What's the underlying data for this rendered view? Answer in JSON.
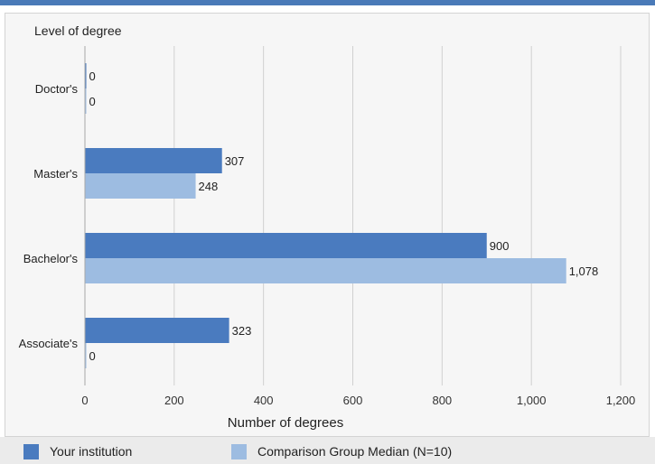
{
  "chart_data": {
    "type": "bar",
    "orientation": "horizontal",
    "title": "",
    "ylabel": "Level of degree",
    "xlabel": "Number of degrees",
    "categories": [
      "Doctor's",
      "Master's",
      "Bachelor's",
      "Associate's"
    ],
    "series": [
      {
        "name": "Your institution",
        "values": [
          0,
          307,
          900,
          323
        ],
        "labels": [
          "0",
          "307",
          "900",
          "323"
        ],
        "color": "#4a7bbf"
      },
      {
        "name": "Comparison Group Median (N=10)",
        "values": [
          0,
          248,
          1078,
          0
        ],
        "labels": [
          "0",
          "248",
          "1,078",
          "0"
        ],
        "color": "#9dbce1"
      }
    ],
    "xlim": [
      0,
      1200
    ],
    "xticks": [
      0,
      200,
      400,
      600,
      800,
      1000,
      1200
    ],
    "xtick_labels": [
      "0",
      "200",
      "400",
      "600",
      "800",
      "1,000",
      "1,200"
    ],
    "grid": true,
    "legend": "bottom"
  }
}
